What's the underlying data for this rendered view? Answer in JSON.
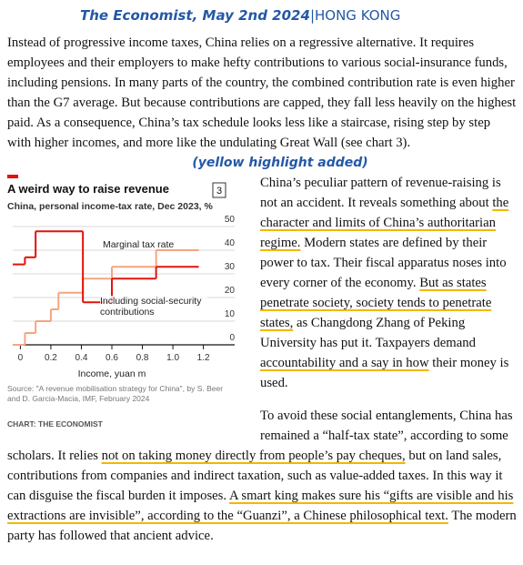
{
  "header": {
    "publication": "The Economist, May 2nd 2024",
    "location": "|HONG KONG"
  },
  "paragraphs": [
    {
      "segments": [
        {
          "text": "Instead of progressive income taxes, China relies on a regressive alternative. It requires employees and their employers to make hefty contributions to various social-insurance funds, including pensions. In many parts of the country, the combined contribution rate is even higher than the G7 average. But because contributions are capped, they fall less heavily on the highest paid. As a consequence, China’s tax schedule looks less like a staircase, rising step by step with higher incomes, and more like the undulating Great Wall (see chart 3).",
          "highlight": false
        }
      ]
    },
    {
      "segments": [
        {
          "text": "China’s peculiar pattern of revenue-raising is not an accident. It reveals something about ",
          "highlight": false
        },
        {
          "text": "the character and limits of China’s authoritarian regime.",
          "highlight": true
        },
        {
          "text": " Modern states are defined by their power to tax. Their fiscal apparatus noses into every corner of the economy. ",
          "highlight": false
        },
        {
          "text": "But as states penetrate society, society tends to penetrate states,",
          "highlight": true
        },
        {
          "text": " as Changdong Zhang of Peking University has put it. Taxpayers demand ",
          "highlight": false
        },
        {
          "text": "accountability and a say in how",
          "highlight": true
        },
        {
          "text": " their money is used.",
          "highlight": false
        }
      ]
    },
    {
      "segments": [
        {
          "text": "To avoid these social entanglements, China has remained a “half-tax state”, according to some scholars. It relies ",
          "highlight": false
        },
        {
          "text": "not on taking money directly from people’s pay cheques,",
          "highlight": true
        },
        {
          "text": " but on land sales, contributions from companies and indirect taxation, such as value-added taxes. In this way it can disguise the fiscal burden it imposes. ",
          "highlight": false
        },
        {
          "text": "A smart king makes sure his “gifts are visible and his extractions are invisible”, according to the “Guanzi”, a Chinese philosophical text.",
          "highlight": true
        },
        {
          "text": " The modern party has followed that ancient advice.",
          "highlight": false
        }
      ]
    }
  ],
  "note": "(yellow highlight added)",
  "chart_data": {
    "type": "step",
    "title": "A weird way to raise revenue",
    "chart_number": "3",
    "subtitle": "China, personal income-tax rate, Dec 2023, %",
    "x_label": "Income, yuan m",
    "source": "Source: \"A revenue mobilisation strategy for China\", by S. Beer and D. Garcia-Macia, IMF, February 2024",
    "credit": "CHART: THE ECONOMIST",
    "xlim": [
      -0.05,
      1.25
    ],
    "ylim": [
      0,
      50
    ],
    "xticks": [
      0,
      0.2,
      0.4,
      0.6,
      0.8,
      {
        "value": 1,
        "label": "1.0"
      },
      1.2
    ],
    "yticks": [
      0,
      10,
      20,
      30,
      40,
      50
    ],
    "grid": true,
    "series": [
      {
        "name": "Marginal tax rate",
        "color": "#e3120b",
        "bins": [
          -0.05,
          0.03,
          0.1,
          0.41,
          0.6,
          0.89,
          1.17
        ],
        "values": [
          34,
          37,
          48,
          18,
          28,
          33
        ]
      },
      {
        "name": "Including social-security contributions",
        "color": "#f4a582",
        "bins": [
          -0.05,
          0.03,
          0.1,
          0.2,
          0.25,
          0.41,
          0.6,
          0.89,
          1.17
        ],
        "values": [
          0,
          5,
          10,
          15,
          22,
          28,
          33,
          40
        ]
      }
    ]
  }
}
